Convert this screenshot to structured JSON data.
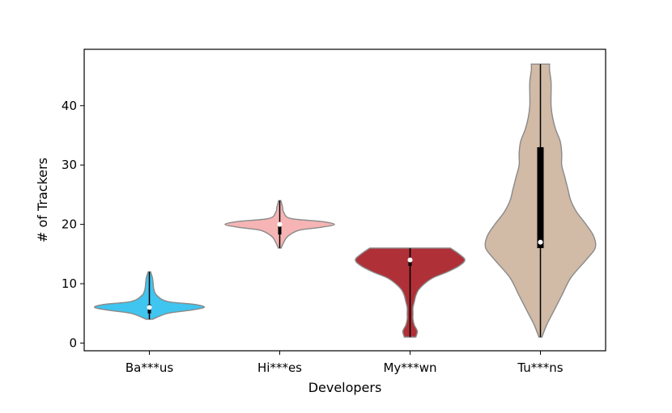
{
  "chart_data": {
    "type": "violin",
    "xlabel": "Developers",
    "ylabel": "# of Trackers",
    "ylim": [
      -1.3,
      49.5
    ],
    "yticks": [
      0,
      10,
      20,
      30,
      40
    ],
    "grid": false,
    "categories": [
      "Ba***us",
      "Hi***es",
      "My***wn",
      "Tu***ns"
    ],
    "series": [
      {
        "color": "#3fc5f0",
        "min": 4,
        "max": 12,
        "median": 6,
        "q1": 5,
        "q3": 6.5,
        "profile": [
          [
            4,
            2
          ],
          [
            5,
            12
          ],
          [
            5.5,
            26
          ],
          [
            6,
            36
          ],
          [
            6.5,
            30
          ],
          [
            7,
            12
          ],
          [
            8,
            5
          ],
          [
            9,
            3
          ],
          [
            10,
            2.5
          ],
          [
            11,
            2
          ],
          [
            12,
            0.8
          ]
        ]
      },
      {
        "color": "#f6b4b4",
        "min": 16,
        "max": 24,
        "median": 20,
        "q1": 18.3,
        "q3": 20,
        "profile": [
          [
            16,
            1
          ],
          [
            17,
            3
          ],
          [
            18,
            6
          ],
          [
            19,
            14
          ],
          [
            19.5,
            30
          ],
          [
            20,
            40
          ],
          [
            20.5,
            30
          ],
          [
            21,
            8
          ],
          [
            22,
            3
          ],
          [
            23,
            2
          ],
          [
            24,
            0.8
          ]
        ]
      },
      {
        "color": "#b03038",
        "min": 1,
        "max": 16,
        "median": 14,
        "q1": 13,
        "q3": 14,
        "profile": [
          [
            1,
            4
          ],
          [
            2,
            5
          ],
          [
            3,
            3
          ],
          [
            4,
            2
          ],
          [
            5,
            2
          ],
          [
            6,
            2
          ],
          [
            7,
            3
          ],
          [
            8,
            4
          ],
          [
            9,
            6
          ],
          [
            10,
            10
          ],
          [
            11,
            16
          ],
          [
            12,
            26
          ],
          [
            13,
            34
          ],
          [
            14,
            38
          ],
          [
            15,
            34
          ],
          [
            16,
            28
          ]
        ]
      },
      {
        "color": "#d1baa6",
        "min": 1,
        "max": 47,
        "median": 17,
        "q1": 16,
        "q3": 33,
        "profile": [
          [
            1,
            1
          ],
          [
            3,
            4
          ],
          [
            5,
            8
          ],
          [
            8,
            14
          ],
          [
            11,
            20
          ],
          [
            14,
            30
          ],
          [
            16,
            36
          ],
          [
            18,
            35
          ],
          [
            20,
            30
          ],
          [
            22,
            24
          ],
          [
            24,
            20
          ],
          [
            26,
            18
          ],
          [
            28,
            16
          ],
          [
            30,
            14
          ],
          [
            32,
            14
          ],
          [
            34,
            13
          ],
          [
            36,
            10
          ],
          [
            38,
            8
          ],
          [
            40,
            7
          ],
          [
            42,
            7
          ],
          [
            44,
            7
          ],
          [
            46,
            6
          ],
          [
            47,
            6
          ]
        ]
      }
    ]
  }
}
